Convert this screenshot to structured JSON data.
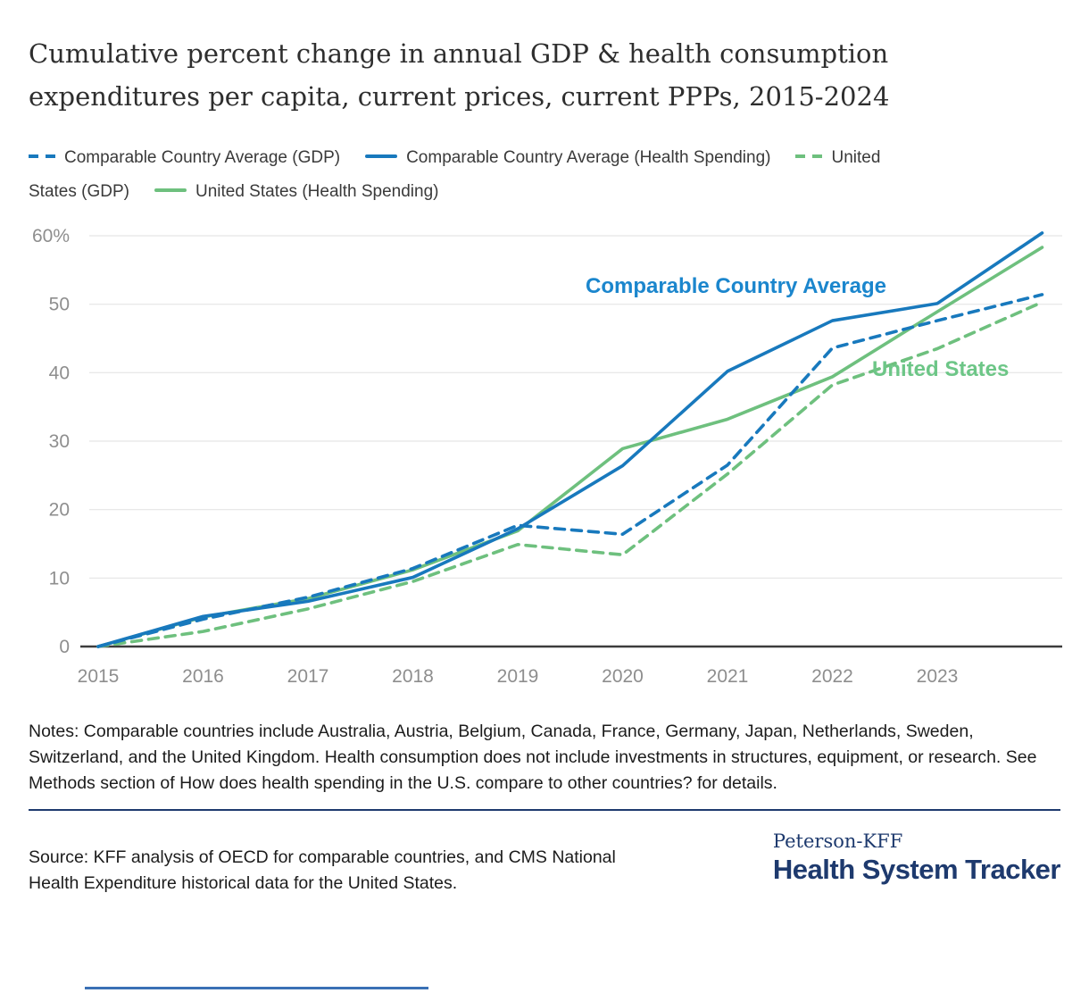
{
  "title": "Cumulative percent change in annual GDP & health consumption expenditures per capita, current prices, current PPPs, 2015-2024",
  "colors": {
    "blue": "#1879BD",
    "green": "#6EC07E",
    "navy": "#1E3A6E",
    "annotation_blue": "#1B86CD",
    "annotation_green": "#6DC687",
    "axis_text": "#8E8E8E",
    "gridline": "#E5E5E5",
    "zero_line": "#3C3C3C"
  },
  "chart_data": {
    "type": "line",
    "x": [
      2015,
      2016,
      2017,
      2018,
      2019,
      2020,
      2021,
      2022,
      2023,
      2024
    ],
    "series": [
      {
        "key": "cca_gdp",
        "name": "Comparable Country Average (GDP)",
        "style": "dashed",
        "color": "#1879BD",
        "values": [
          0,
          4.0,
          7.2,
          11.4,
          17.7,
          16.4,
          26.5,
          43.6,
          47.6,
          51.4
        ]
      },
      {
        "key": "cca_health",
        "name": "Comparable Country Average (Health Spending)",
        "style": "solid",
        "color": "#1879BD",
        "values": [
          0,
          4.4,
          6.6,
          10.1,
          17.2,
          26.4,
          40.2,
          47.6,
          50.1,
          60.4
        ]
      },
      {
        "key": "us_gdp",
        "name": "United States (GDP)",
        "style": "dashed",
        "color": "#6EC07E",
        "values": [
          0,
          2.2,
          5.5,
          9.5,
          14.9,
          13.4,
          25.2,
          38.2,
          43.5,
          50.3
        ]
      },
      {
        "key": "us_health",
        "name": "United States (Health Spending)",
        "style": "solid",
        "color": "#6EC07E",
        "values": [
          0,
          4.3,
          7.0,
          11.2,
          16.9,
          28.9,
          33.2,
          39.4,
          48.9,
          58.3
        ]
      }
    ],
    "ylim": [
      0,
      60
    ],
    "ytick_labels": [
      "0",
      "10",
      "20",
      "30",
      "40",
      "50",
      "60%"
    ],
    "xtick_labels": [
      "2015",
      "2016",
      "2017",
      "2018",
      "2019",
      "2020",
      "2021",
      "2022",
      "2023"
    ],
    "grid": true,
    "legend_position": "top",
    "annotations": [
      {
        "text": "Comparable Country Average",
        "color": "#1B86CD"
      },
      {
        "text": "United States",
        "color": "#6DC687"
      }
    ]
  },
  "notes": "Notes: Comparable countries include Australia, Austria, Belgium, Canada, France, Germany, Japan, Netherlands, Sweden, Switzerland, and the United Kingdom. Health consumption does not include investments in structures, equipment, or research. See Methods section of How does health spending in the U.S. compare to other countries? for details.",
  "source": "Source: KFF analysis of OECD for comparable countries, and CMS National Health Expenditure historical data for the United States.",
  "logo": {
    "top": "Peterson-KFF",
    "bottom": "Health System Tracker"
  }
}
